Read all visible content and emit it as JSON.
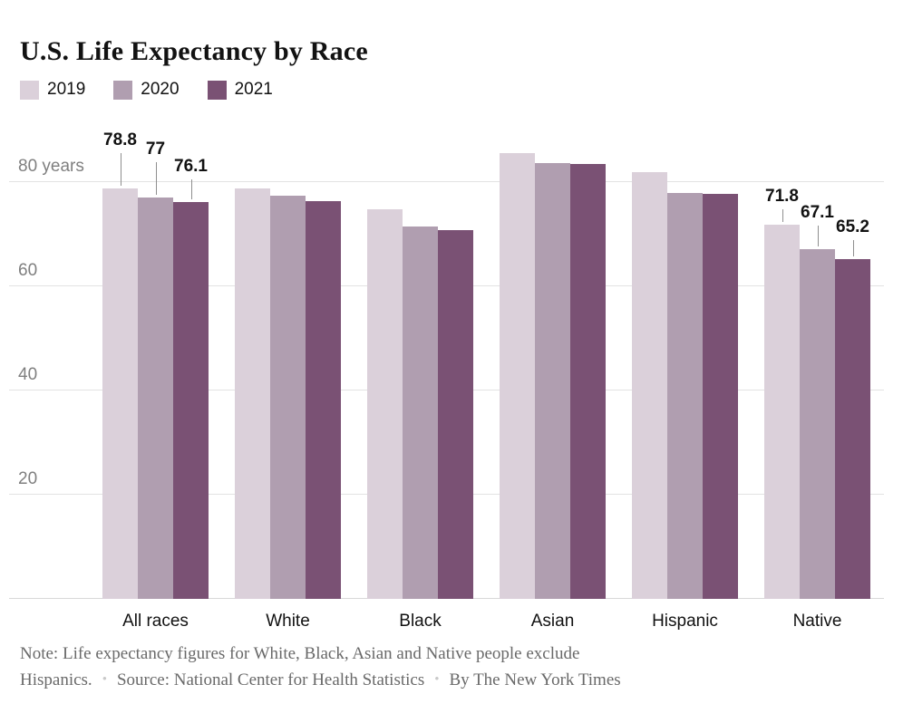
{
  "title": "U.S. Life Expectancy by Race",
  "chart_data": {
    "type": "bar",
    "title": "U.S. Life Expectancy by Race",
    "unit": "years",
    "categories": [
      "All races",
      "White",
      "Black",
      "Asian",
      "Hispanic",
      "Native"
    ],
    "series": [
      {
        "name": "2019",
        "color": "#dbd0da",
        "values": [
          78.8,
          78.8,
          74.8,
          85.6,
          81.9,
          71.8
        ]
      },
      {
        "name": "2020",
        "color": "#b09eb0",
        "values": [
          77.0,
          77.4,
          71.5,
          83.6,
          77.9,
          67.1
        ]
      },
      {
        "name": "2021",
        "color": "#7a5174",
        "values": [
          76.1,
          76.4,
          70.8,
          83.5,
          77.7,
          65.2
        ]
      }
    ],
    "data_labels": {
      "All races": [
        "78.8",
        "77",
        "76.1"
      ],
      "Native": [
        "71.8",
        "67.1",
        "65.2"
      ]
    },
    "yticks": [
      20,
      40,
      60,
      80
    ],
    "ytick_top_label": "80 years",
    "ylim": [
      0,
      88
    ],
    "grid": "horizontal",
    "legend_position": "top-left"
  },
  "footer": {
    "note_line1": "Note: Life expectancy figures for White, Black, Asian and Native people exclude",
    "note_line2_start": "Hispanics.",
    "separator": "•",
    "source": "Source: National Center for Health Statistics",
    "byline": "By The New York Times"
  },
  "colors": {
    "grid": "#e2e2e2",
    "axis_text": "#7f7f7f",
    "leader_line": "#8f8f8f",
    "text": "#121212",
    "note_text": "#696969"
  }
}
